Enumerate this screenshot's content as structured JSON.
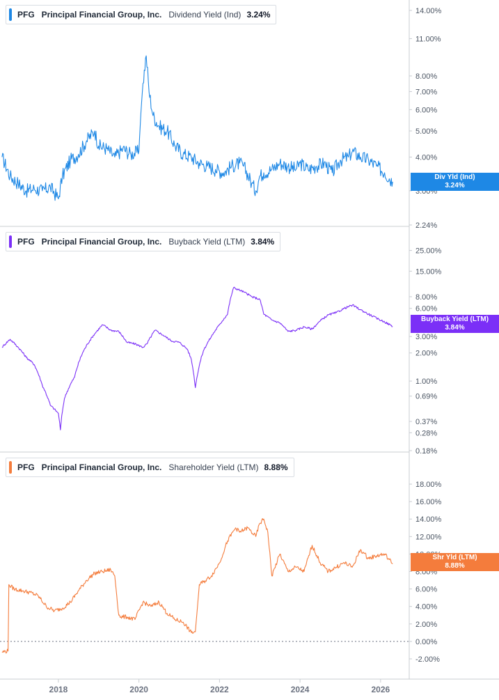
{
  "chart_data": [
    {
      "type": "line",
      "ticker": "PFG",
      "company": "Principal Financial Group, Inc.",
      "metric": "Dividend Yield (Ind)",
      "value": "3.24%",
      "tag_label": "Div Yld (Ind)",
      "tag_value": "3.24%",
      "color": "#1e88e5",
      "y_scale": "log",
      "ylim": [
        2.24,
        14.5
      ],
      "y_ticks": [
        "14.00%",
        "11.00%",
        "8.00%",
        "7.00%",
        "6.00%",
        "5.00%",
        "4.00%",
        "3.00%",
        "2.24%"
      ],
      "y_tick_values": [
        14,
        11,
        8,
        7,
        6,
        5,
        4,
        3,
        2.24
      ],
      "series": [
        {
          "x": [
            2016.6,
            2016.8,
            2017.0,
            2017.2,
            2017.4,
            2017.6,
            2017.8,
            2018.0,
            2018.1,
            2018.3,
            2018.5,
            2018.7,
            2018.9,
            2019.0,
            2019.2,
            2019.4,
            2019.6,
            2019.8,
            2020.0,
            2020.1,
            2020.18,
            2020.25,
            2020.35,
            2020.5,
            2020.7,
            2020.9,
            2021.1,
            2021.3,
            2021.5,
            2021.7,
            2021.9,
            2022.1,
            2022.3,
            2022.5,
            2022.6,
            2022.8,
            2022.9,
            2023.0,
            2023.1,
            2023.3,
            2023.5,
            2023.7,
            2023.9,
            2024.0,
            2024.2,
            2024.4,
            2024.6,
            2024.8,
            2025.0,
            2025.2,
            2025.3,
            2025.5,
            2025.7,
            2025.9,
            2026.1,
            2026.3
          ],
          "values": [
            4.0,
            3.4,
            3.2,
            3.0,
            3.05,
            3.0,
            3.1,
            2.8,
            3.4,
            3.9,
            4.1,
            4.6,
            5.0,
            4.4,
            4.3,
            4.0,
            4.3,
            4.1,
            4.2,
            7.5,
            9.5,
            7.0,
            5.7,
            5.2,
            5.0,
            4.4,
            4.1,
            4.0,
            3.8,
            3.7,
            3.6,
            3.5,
            3.7,
            3.8,
            3.7,
            3.2,
            3.0,
            3.4,
            3.5,
            3.6,
            3.8,
            3.7,
            3.6,
            3.8,
            3.6,
            3.7,
            3.8,
            3.5,
            3.9,
            4.0,
            4.2,
            4.0,
            3.9,
            3.7,
            3.5,
            3.24
          ]
        }
      ]
    },
    {
      "type": "line",
      "ticker": "PFG",
      "company": "Principal Financial Group, Inc.",
      "metric": "Buyback Yield (LTM)",
      "value": "3.84%",
      "tag_label": "Buyback Yield (LTM)",
      "tag_value": "3.84%",
      "color": "#7b2ff7",
      "y_scale": "log",
      "ylim": [
        0.18,
        28
      ],
      "y_ticks": [
        "25.00%",
        "15.00%",
        "8.00%",
        "6.00%",
        "3.00%",
        "2.00%",
        "1.00%",
        "0.69%",
        "0.37%",
        "0.28%",
        "0.18%"
      ],
      "y_tick_values": [
        25,
        15,
        8,
        6,
        3,
        2,
        1,
        0.69,
        0.37,
        0.28,
        0.18
      ],
      "series": [
        {
          "x": [
            2016.6,
            2016.8,
            2017.0,
            2017.2,
            2017.4,
            2017.6,
            2017.8,
            2018.0,
            2018.05,
            2018.15,
            2018.4,
            2018.6,
            2018.9,
            2019.1,
            2019.3,
            2019.5,
            2019.7,
            2019.9,
            2020.1,
            2020.2,
            2020.4,
            2020.6,
            2020.8,
            2021.0,
            2021.2,
            2021.3,
            2021.4,
            2021.6,
            2021.8,
            2022.0,
            2022.2,
            2022.35,
            2022.6,
            2022.8,
            2023.0,
            2023.1,
            2023.3,
            2023.5,
            2023.7,
            2023.9,
            2024.1,
            2024.3,
            2024.5,
            2024.7,
            2024.9,
            2025.1,
            2025.3,
            2025.5,
            2025.7,
            2025.9,
            2026.1,
            2026.3
          ],
          "values": [
            2.3,
            2.8,
            2.3,
            1.8,
            1.5,
            0.9,
            0.55,
            0.45,
            0.3,
            0.65,
            1.1,
            2.0,
            3.2,
            4.0,
            3.5,
            3.4,
            2.6,
            2.5,
            2.3,
            2.5,
            3.5,
            3.1,
            2.7,
            2.6,
            2.2,
            1.7,
            0.85,
            2.1,
            3.0,
            4.0,
            5.2,
            10.0,
            9.0,
            8.0,
            7.5,
            5.2,
            4.5,
            4.2,
            3.4,
            3.5,
            3.8,
            3.6,
            4.4,
            5.1,
            5.4,
            6.0,
            6.5,
            5.8,
            5.2,
            4.7,
            4.3,
            3.84
          ]
        }
      ]
    },
    {
      "type": "line",
      "ticker": "PFG",
      "company": "Principal Financial Group, Inc.",
      "metric": "Shareholder Yield (LTM)",
      "value": "8.88%",
      "tag_label": "Shr Yld (LTM)",
      "tag_value": "8.88%",
      "color": "#f47c3c",
      "y_scale": "linear",
      "ylim": [
        -2.8,
        19.2
      ],
      "y_ticks": [
        "18.00%",
        "16.00%",
        "14.00%",
        "12.00%",
        "10.00%",
        "8.00%",
        "6.00%",
        "4.00%",
        "2.00%",
        "0.00%",
        "-2.00%"
      ],
      "y_tick_values": [
        18,
        16,
        14,
        12,
        10,
        8,
        6,
        4,
        2,
        0,
        -2
      ],
      "zero_line": true,
      "series": [
        {
          "x": [
            2016.6,
            2016.75,
            2016.77,
            2016.9,
            2017.1,
            2017.3,
            2017.5,
            2017.7,
            2017.9,
            2018.1,
            2018.3,
            2018.5,
            2018.7,
            2018.9,
            2019.1,
            2019.3,
            2019.4,
            2019.5,
            2019.55,
            2019.7,
            2019.9,
            2020.1,
            2020.3,
            2020.5,
            2020.7,
            2020.9,
            2021.1,
            2021.3,
            2021.4,
            2021.5,
            2021.6,
            2021.8,
            2022.0,
            2022.2,
            2022.4,
            2022.5,
            2022.7,
            2022.9,
            2023.0,
            2023.1,
            2023.2,
            2023.3,
            2023.5,
            2023.7,
            2023.9,
            2024.1,
            2024.3,
            2024.5,
            2024.7,
            2024.9,
            2025.1,
            2025.3,
            2025.5,
            2025.7,
            2025.9,
            2026.1,
            2026.3
          ],
          "values": [
            -1.2,
            -1.1,
            6.5,
            6.0,
            5.8,
            5.6,
            5.2,
            4.0,
            3.5,
            3.8,
            4.5,
            5.8,
            7.0,
            7.8,
            8.0,
            8.2,
            7.5,
            3.0,
            2.8,
            2.8,
            2.5,
            4.5,
            4.0,
            4.5,
            3.2,
            2.5,
            2.2,
            1.0,
            1.1,
            6.5,
            6.8,
            7.5,
            9.0,
            11.5,
            13.0,
            12.5,
            13.0,
            12.0,
            13.5,
            14.0,
            12.5,
            7.5,
            10.0,
            8.0,
            8.5,
            8.0,
            11.0,
            9.0,
            8.0,
            8.5,
            9.0,
            8.5,
            10.5,
            9.5,
            9.8,
            10.0,
            8.88
          ]
        }
      ]
    }
  ],
  "x_axis": {
    "range": [
      2016.55,
      2026.4
    ],
    "ticks": [
      {
        "value": 2018,
        "label": "2018"
      },
      {
        "value": 2020,
        "label": "2020"
      },
      {
        "value": 2022,
        "label": "2022"
      },
      {
        "value": 2024,
        "label": "2024"
      },
      {
        "value": 2026,
        "label": "2026"
      }
    ]
  }
}
